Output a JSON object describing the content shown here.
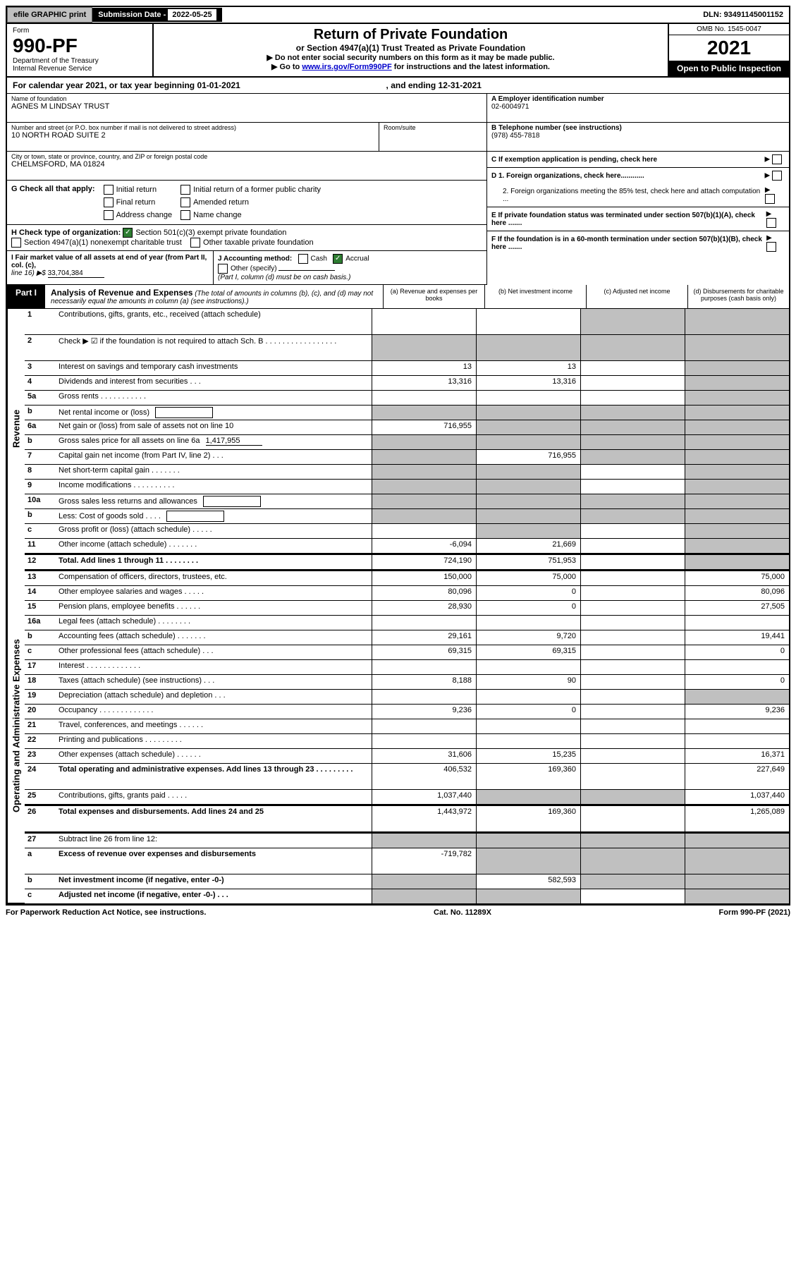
{
  "topbar": {
    "efile": "efile GRAPHIC print",
    "submission_label": "Submission Date - ",
    "submission_date": "2022-05-25",
    "dln_label": "DLN: ",
    "dln": "93491145001152"
  },
  "header": {
    "form_label": "Form",
    "form_number": "990-PF",
    "dept1": "Department of the Treasury",
    "dept2": "Internal Revenue Service",
    "title": "Return of Private Foundation",
    "subtitle": "or Section 4947(a)(1) Trust Treated as Private Foundation",
    "note1": "▶ Do not enter social security numbers on this form as it may be made public.",
    "note2_pre": "▶ Go to ",
    "note2_link": "www.irs.gov/Form990PF",
    "note2_post": " for instructions and the latest information.",
    "omb": "OMB No. 1545-0047",
    "year": "2021",
    "open_public": "Open to Public Inspection"
  },
  "calendar": {
    "text_pre": "For calendar year 2021, or tax year beginning ",
    "begin": "01-01-2021",
    "text_mid": ", and ending ",
    "end": "12-31-2021"
  },
  "entity": {
    "name_label": "Name of foundation",
    "name": "AGNES M LINDSAY TRUST",
    "addr_label": "Number and street (or P.O. box number if mail is not delivered to street address)",
    "addr": "10 NORTH ROAD SUITE 2",
    "room_label": "Room/suite",
    "city_label": "City or town, state or province, country, and ZIP or foreign postal code",
    "city": "CHELMSFORD, MA  01824",
    "ein_label": "A Employer identification number",
    "ein": "02-6004971",
    "phone_label": "B Telephone number (see instructions)",
    "phone": "(978) 455-7818",
    "c_label": "C If exemption application is pending, check here",
    "d1_label": "D 1. Foreign organizations, check here............",
    "d2_label": "2. Foreign organizations meeting the 85% test, check here and attach computation ...",
    "e_label": "E  If private foundation status was terminated under section 507(b)(1)(A), check here .......",
    "f_label": "F  If the foundation is in a 60-month termination under section 507(b)(1)(B), check here .......",
    "g_label": "G Check all that apply:",
    "g_opts": [
      "Initial return",
      "Initial return of a former public charity",
      "Final return",
      "Amended return",
      "Address change",
      "Name change"
    ],
    "h_label": "H Check type of organization:",
    "h_opt1": "Section 501(c)(3) exempt private foundation",
    "h_opt2": "Section 4947(a)(1) nonexempt charitable trust",
    "h_opt3": "Other taxable private foundation",
    "i_label": "I Fair market value of all assets at end of year (from Part II, col. (c),",
    "i_line": "line 16) ▶$ ",
    "i_value": "33,704,384",
    "j_label": "J Accounting method:",
    "j_cash": "Cash",
    "j_accrual": "Accrual",
    "j_other": "Other (specify)",
    "j_note": "(Part I, column (d) must be on cash basis.)"
  },
  "part1": {
    "label": "Part I",
    "title": "Analysis of Revenue and Expenses",
    "title_note": " (The total of amounts in columns (b), (c), and (d) may not necessarily equal the amounts in column (a) (see instructions).)",
    "col_a": "(a)    Revenue and expenses per books",
    "col_b": "(b)    Net investment income",
    "col_c": "(c)   Adjusted net income",
    "col_d": "(d)   Disbursements for charitable purposes (cash basis only)"
  },
  "side_labels": {
    "revenue": "Revenue",
    "expenses": "Operating and Administrative Expenses"
  },
  "rows": [
    {
      "num": "1",
      "desc": "Contributions, gifts, grants, etc., received (attach schedule)",
      "a": "",
      "b": "",
      "c": "shaded",
      "d": "shaded",
      "tall": true
    },
    {
      "num": "2",
      "desc": "Check ▶ ☑ if the foundation is not required to attach Sch. B   .  .  .  .  .  .  .  .  .  .  .  .  .  .  .  .  .",
      "a": "shaded",
      "b": "shaded",
      "c": "shaded",
      "d": "shaded",
      "tall": true
    },
    {
      "num": "3",
      "desc": "Interest on savings and temporary cash investments",
      "a": "13",
      "b": "13",
      "c": "",
      "d": "shaded"
    },
    {
      "num": "4",
      "desc": "Dividends and interest from securities    .   .   .",
      "a": "13,316",
      "b": "13,316",
      "c": "",
      "d": "shaded"
    },
    {
      "num": "5a",
      "desc": "Gross rents   .   .   .   .   .   .   .   .   .   .   .",
      "a": "",
      "b": "",
      "c": "",
      "d": "shaded"
    },
    {
      "num": "b",
      "desc": "Net rental income or (loss)",
      "a": "shaded",
      "b": "shaded",
      "c": "shaded",
      "d": "shaded",
      "inner_box": true
    },
    {
      "num": "6a",
      "desc": "Net gain or (loss) from sale of assets not on line 10",
      "a": "716,955",
      "b": "shaded",
      "c": "shaded",
      "d": "shaded"
    },
    {
      "num": "b",
      "desc": "Gross sales price for all assets on line 6a",
      "a": "shaded",
      "b": "shaded",
      "c": "shaded",
      "d": "shaded",
      "inline_val": "1,417,955"
    },
    {
      "num": "7",
      "desc": "Capital gain net income (from Part IV, line 2)   .   .   .",
      "a": "shaded",
      "b": "716,955",
      "c": "shaded",
      "d": "shaded"
    },
    {
      "num": "8",
      "desc": "Net short-term capital gain  .  .  .  .  .  .  .",
      "a": "shaded",
      "b": "shaded",
      "c": "",
      "d": "shaded"
    },
    {
      "num": "9",
      "desc": "Income modifications .  .  .  .  .  .  .  .  .  .",
      "a": "shaded",
      "b": "shaded",
      "c": "",
      "d": "shaded"
    },
    {
      "num": "10a",
      "desc": "Gross sales less returns and allowances",
      "a": "shaded",
      "b": "shaded",
      "c": "shaded",
      "d": "shaded",
      "inner_box": true
    },
    {
      "num": "b",
      "desc": "Less: Cost of goods sold   .   .   .   .",
      "a": "shaded",
      "b": "shaded",
      "c": "shaded",
      "d": "shaded",
      "inner_box": true
    },
    {
      "num": "c",
      "desc": "Gross profit or (loss) (attach schedule)   .   .   .   .   .",
      "a": "",
      "b": "shaded",
      "c": "",
      "d": "shaded"
    },
    {
      "num": "11",
      "desc": "Other income (attach schedule)   .   .   .   .   .   .   .",
      "a": "-6,094",
      "b": "21,669",
      "c": "",
      "d": "shaded"
    },
    {
      "num": "12",
      "desc": "Total. Add lines 1 through 11  .  .  .  .  .  .  .  .",
      "a": "724,190",
      "b": "751,953",
      "c": "",
      "d": "shaded",
      "bold": true,
      "divider": true
    },
    {
      "num": "13",
      "desc": "Compensation of officers, directors, trustees, etc.",
      "a": "150,000",
      "b": "75,000",
      "c": "",
      "d": "75,000",
      "section": "expenses"
    },
    {
      "num": "14",
      "desc": "Other employee salaries and wages   .   .   .   .   .",
      "a": "80,096",
      "b": "0",
      "c": "",
      "d": "80,096"
    },
    {
      "num": "15",
      "desc": "Pension plans, employee benefits .  .  .  .  .  .",
      "a": "28,930",
      "b": "0",
      "c": "",
      "d": "27,505"
    },
    {
      "num": "16a",
      "desc": "Legal fees (attach schedule) .  .  .  .  .  .  .  .",
      "a": "",
      "b": "",
      "c": "",
      "d": ""
    },
    {
      "num": "b",
      "desc": "Accounting fees (attach schedule) .  .  .  .  .  .  .",
      "a": "29,161",
      "b": "9,720",
      "c": "",
      "d": "19,441"
    },
    {
      "num": "c",
      "desc": "Other professional fees (attach schedule)   .   .   .",
      "a": "69,315",
      "b": "69,315",
      "c": "",
      "d": "0"
    },
    {
      "num": "17",
      "desc": "Interest  .  .  .  .  .  .  .  .  .  .  .  .  .",
      "a": "",
      "b": "",
      "c": "",
      "d": ""
    },
    {
      "num": "18",
      "desc": "Taxes (attach schedule) (see instructions)   .   .   .",
      "a": "8,188",
      "b": "90",
      "c": "",
      "d": "0"
    },
    {
      "num": "19",
      "desc": "Depreciation (attach schedule) and depletion   .   .   .",
      "a": "",
      "b": "",
      "c": "",
      "d": "shaded"
    },
    {
      "num": "20",
      "desc": "Occupancy .  .  .  .  .  .  .  .  .  .  .  .  .",
      "a": "9,236",
      "b": "0",
      "c": "",
      "d": "9,236"
    },
    {
      "num": "21",
      "desc": "Travel, conferences, and meetings .  .  .  .  .  .",
      "a": "",
      "b": "",
      "c": "",
      "d": ""
    },
    {
      "num": "22",
      "desc": "Printing and publications .  .  .  .  .  .  .  .  .",
      "a": "",
      "b": "",
      "c": "",
      "d": ""
    },
    {
      "num": "23",
      "desc": "Other expenses (attach schedule) .  .  .  .  .  .",
      "a": "31,606",
      "b": "15,235",
      "c": "",
      "d": "16,371"
    },
    {
      "num": "24",
      "desc": "Total operating and administrative expenses. Add lines 13 through 23   .   .   .   .   .   .   .   .   .",
      "a": "406,532",
      "b": "169,360",
      "c": "",
      "d": "227,649",
      "bold": true,
      "tall": true
    },
    {
      "num": "25",
      "desc": "Contributions, gifts, grants paid   .   .   .   .   .",
      "a": "1,037,440",
      "b": "shaded",
      "c": "shaded",
      "d": "1,037,440"
    },
    {
      "num": "26",
      "desc": "Total expenses and disbursements. Add lines 24 and 25",
      "a": "1,443,972",
      "b": "169,360",
      "c": "",
      "d": "1,265,089",
      "bold": true,
      "tall": true,
      "divider": true
    },
    {
      "num": "27",
      "desc": "Subtract line 26 from line 12:",
      "a": "shaded",
      "b": "shaded",
      "c": "shaded",
      "d": "shaded",
      "section": "bottom"
    },
    {
      "num": "a",
      "desc": "Excess of revenue over expenses and disbursements",
      "a": "-719,782",
      "b": "shaded",
      "c": "shaded",
      "d": "shaded",
      "bold": true,
      "tall": true
    },
    {
      "num": "b",
      "desc": "Net investment income (if negative, enter -0-)",
      "a": "shaded",
      "b": "582,593",
      "c": "shaded",
      "d": "shaded",
      "bold": true
    },
    {
      "num": "c",
      "desc": "Adjusted net income (if negative, enter -0-)   .   .   .",
      "a": "shaded",
      "b": "shaded",
      "c": "",
      "d": "shaded",
      "bold": true
    }
  ],
  "footer": {
    "left": "For Paperwork Reduction Act Notice, see instructions.",
    "center": "Cat. No. 11289X",
    "right": "Form 990-PF (2021)"
  }
}
